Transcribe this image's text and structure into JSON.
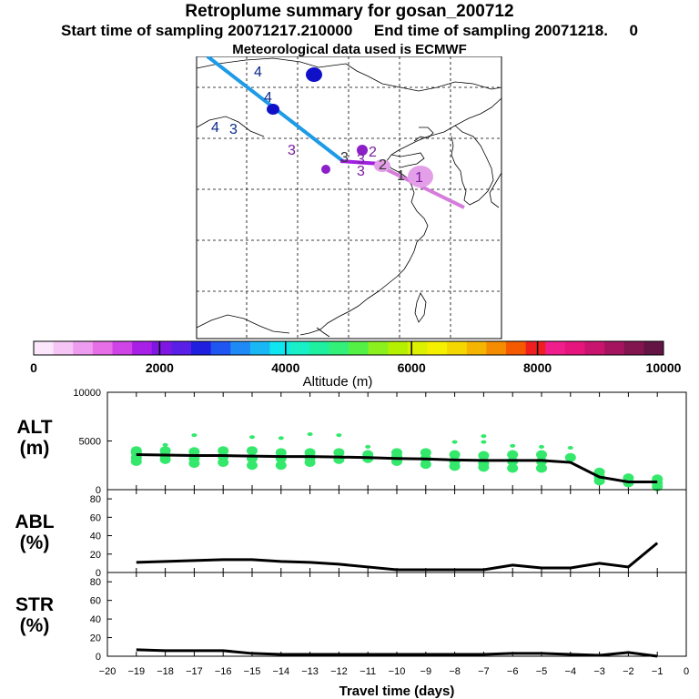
{
  "header": {
    "title": "Retroplume summary for gosan_200712",
    "line2": "Start time of sampling 20071217.210000     End time of sampling 20071218.     0",
    "line3": "Meteorological data used is ECMWF"
  },
  "colorbar": {
    "label": "Altitude (m)",
    "ticks": [
      "0",
      "2000",
      "4000",
      "6000",
      "8000",
      "10000"
    ],
    "colors": [
      "#fbe6fb",
      "#f5c6f5",
      "#ee9cef",
      "#e66fe8",
      "#cf44e6",
      "#a81fe8",
      "#7f17e4",
      "#5a1fe6",
      "#1f1fdf",
      "#1f55f0",
      "#1f8af5",
      "#19b8f5",
      "#0fe6f0",
      "#19f0c8",
      "#1ef0a0",
      "#33f078",
      "#55f046",
      "#8cf01e",
      "#b4f000",
      "#dcf000",
      "#f5f000",
      "#f5d700",
      "#f5b400",
      "#f58c00",
      "#f55a00",
      "#f01e1e",
      "#f01e8c",
      "#e6147d",
      "#c8146e",
      "#a5145f",
      "#821450",
      "#641444"
    ]
  },
  "map": {
    "labels": [
      {
        "text": "4",
        "color": "#0a2a88"
      },
      {
        "text": "4",
        "color": "#0a2a88"
      },
      {
        "text": "4",
        "color": "#0a2a88"
      },
      {
        "text": "3",
        "color": "#0a2a88"
      },
      {
        "text": "3",
        "color": "#7a1aa0"
      },
      {
        "text": "3",
        "color": "#333333"
      },
      {
        "text": "3",
        "color": "#7a1aa0"
      },
      {
        "text": "3",
        "color": "#7a1aa0"
      },
      {
        "text": "2",
        "color": "#7a1aa0"
      },
      {
        "text": "1",
        "color": "#333333"
      },
      {
        "text": "1",
        "color": "#7a1aa0"
      },
      {
        "text": "2",
        "color": "#333333"
      }
    ],
    "colors": {
      "track_early": "#1e9be6",
      "track_mid": "#a020e0",
      "track_late": "#d67ddc",
      "blob_blue": "#1010c8",
      "blob_purple": "#8b1fc8",
      "blob_pink": "#e3a0e8"
    }
  },
  "chart_data": [
    {
      "type": "line",
      "panel": "ALT",
      "ylabel": "ALT\n(m)",
      "ylabel_lines": [
        "ALT",
        "(m)"
      ],
      "ylim": [
        0,
        10000
      ],
      "yticks": [
        "0",
        "5000",
        "10000"
      ],
      "x": [
        -19,
        -18,
        -17,
        -16,
        -15,
        -14,
        -13,
        -12,
        -11,
        -10,
        -9,
        -8,
        -7,
        -6,
        -5,
        -4,
        -3,
        -2,
        -1
      ],
      "series": [
        {
          "name": "median altitude",
          "color": "#000000",
          "values": [
            3600,
            3550,
            3500,
            3500,
            3450,
            3400,
            3400,
            3350,
            3300,
            3200,
            3150,
            3050,
            3000,
            3000,
            3000,
            2800,
            1300,
            800,
            800
          ]
        }
      ],
      "dots_color": "#33e86b",
      "dots": [
        {
          "x": -19,
          "y": [
            4000,
            3800,
            3300,
            2900
          ]
        },
        {
          "x": -18,
          "y": [
            4600,
            4000,
            3500,
            3100
          ]
        },
        {
          "x": -17,
          "y": [
            5600,
            3900,
            3200,
            2700
          ]
        },
        {
          "x": -16,
          "y": [
            4000,
            3400,
            2800
          ]
        },
        {
          "x": -15,
          "y": [
            5400,
            4000,
            3200,
            2500
          ]
        },
        {
          "x": -14,
          "y": [
            5300,
            3800,
            3200,
            2500
          ]
        },
        {
          "x": -13,
          "y": [
            5700,
            3800,
            3300,
            2800
          ]
        },
        {
          "x": -12,
          "y": [
            5600,
            3800,
            3100
          ]
        },
        {
          "x": -11,
          "y": [
            4400,
            3600,
            3200
          ]
        },
        {
          "x": -10,
          "y": [
            3800,
            3400,
            2900
          ]
        },
        {
          "x": -9,
          "y": [
            3800,
            3200,
            2600
          ]
        },
        {
          "x": -8,
          "y": [
            4900,
            3600,
            2900,
            2400
          ]
        },
        {
          "x": -7,
          "y": [
            5500,
            4900,
            3500,
            2700,
            2300
          ]
        },
        {
          "x": -6,
          "y": [
            4500,
            3600,
            2900,
            2200
          ]
        },
        {
          "x": -5,
          "y": [
            4400,
            3600,
            2900,
            2200
          ]
        },
        {
          "x": -4,
          "y": [
            4300,
            3300
          ]
        },
        {
          "x": -3,
          "y": [
            1800,
            1300,
            900
          ]
        },
        {
          "x": -2,
          "y": [
            1200,
            700
          ]
        },
        {
          "x": -1,
          "y": [
            1100,
            700,
            300
          ]
        }
      ]
    },
    {
      "type": "line",
      "panel": "ABL",
      "ylabel": "ABL\n(%)",
      "ylabel_lines": [
        "ABL",
        "(%)"
      ],
      "ylim": [
        0,
        90
      ],
      "yticks": [
        "0",
        "20",
        "40",
        "60",
        "80"
      ],
      "x": [
        -19,
        -18,
        -17,
        -16,
        -15,
        -14,
        -13,
        -12,
        -11,
        -10,
        -9,
        -8,
        -7,
        -6,
        -5,
        -4,
        -3,
        -2,
        -1
      ],
      "series": [
        {
          "name": "ABL fraction",
          "color": "#000000",
          "values": [
            11,
            12,
            13,
            14,
            14,
            12,
            11,
            9,
            6,
            3,
            3,
            3,
            3,
            8,
            5,
            5,
            10,
            6,
            32
          ]
        }
      ]
    },
    {
      "type": "line",
      "panel": "STR",
      "ylabel": "STR\n(%)",
      "ylabel_lines": [
        "STR",
        "(%)"
      ],
      "ylim": [
        0,
        90
      ],
      "yticks": [
        "0",
        "20",
        "40",
        "60",
        "80"
      ],
      "xlabel": "Travel time (days)",
      "xticks": [
        "-20",
        "-19",
        "-18",
        "-17",
        "-16",
        "-15",
        "-14",
        "-13",
        "-12",
        "-11",
        "-10",
        "-9",
        "-8",
        "-7",
        "-6",
        "-5",
        "-4",
        "-3",
        "-2",
        "-1",
        "0"
      ],
      "x": [
        -19,
        -18,
        -17,
        -16,
        -15,
        -14,
        -13,
        -12,
        -11,
        -10,
        -9,
        -8,
        -7,
        -6,
        -5,
        -4,
        -3,
        -2,
        -1
      ],
      "series": [
        {
          "name": "stratospheric fraction",
          "color": "#000000",
          "values": [
            7,
            6,
            6,
            6,
            3,
            2,
            2,
            2,
            2,
            2,
            2,
            2,
            2,
            3,
            3,
            2,
            1,
            4,
            0
          ]
        }
      ]
    }
  ]
}
